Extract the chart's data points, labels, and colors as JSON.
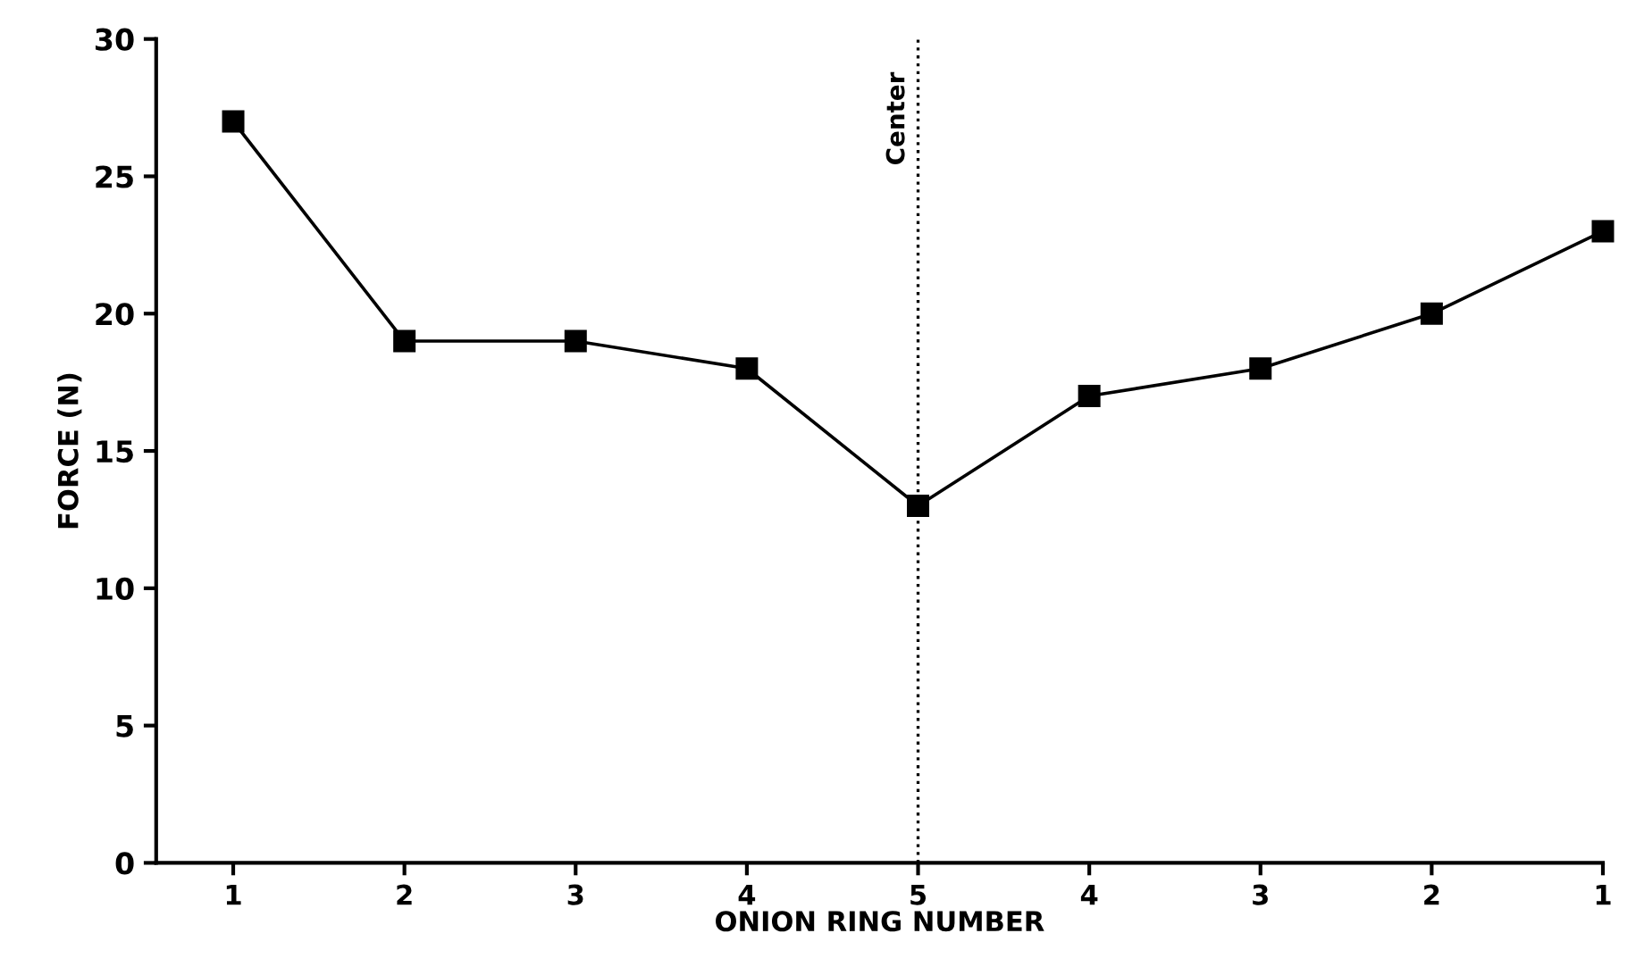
{
  "chart_data": {
    "type": "line",
    "xlabel": "ONION RING NUMBER",
    "ylabel": "FORCE (N)",
    "categories": [
      "1",
      "2",
      "3",
      "4",
      "5",
      "4",
      "3",
      "2",
      "1"
    ],
    "series": [
      {
        "color": "#000000",
        "values": [
          27,
          19,
          19,
          18,
          13,
          17,
          18,
          20,
          23
        ]
      }
    ],
    "ylim": [
      0,
      30
    ],
    "yticks": [
      0,
      5,
      10,
      15,
      20,
      25,
      30
    ],
    "marker": "square",
    "line_style": "solid",
    "grid": false,
    "ref_lines": [
      {
        "axis": "x",
        "value": "5",
        "label": "Center",
        "color": "#000000",
        "line_style": "dotted"
      }
    ]
  }
}
